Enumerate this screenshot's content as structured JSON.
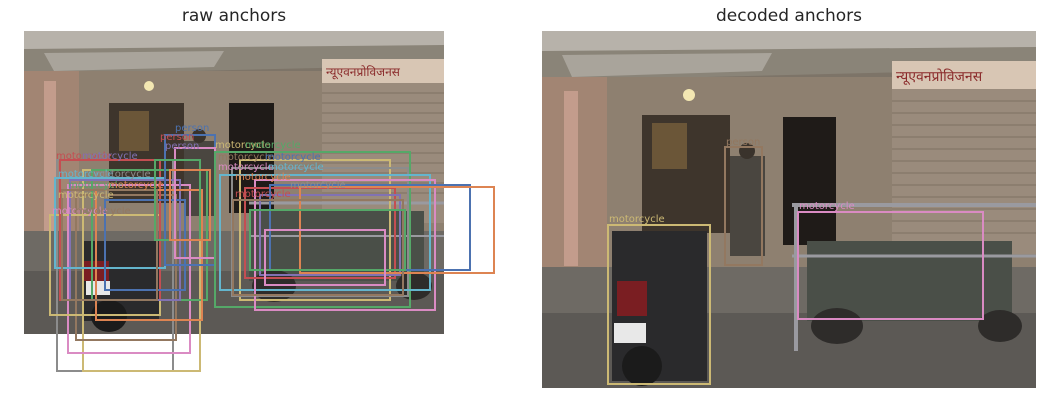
{
  "panels": {
    "left": {
      "title": "raw anchors"
    },
    "right": {
      "title": "decoded anchors"
    }
  },
  "labels": {
    "person": "person",
    "motorcycle": "motorcycle"
  },
  "colors": {
    "c_blue": "#4c72b0",
    "c_orange": "#dd8452",
    "c_green": "#55a868",
    "c_red": "#c44e52",
    "c_purple": "#8172b3",
    "c_brown": "#937860",
    "c_pink": "#da8bc3",
    "c_gray": "#8c8c8c",
    "c_olive": "#ccb974",
    "c_cyan": "#64b5cd"
  }
}
